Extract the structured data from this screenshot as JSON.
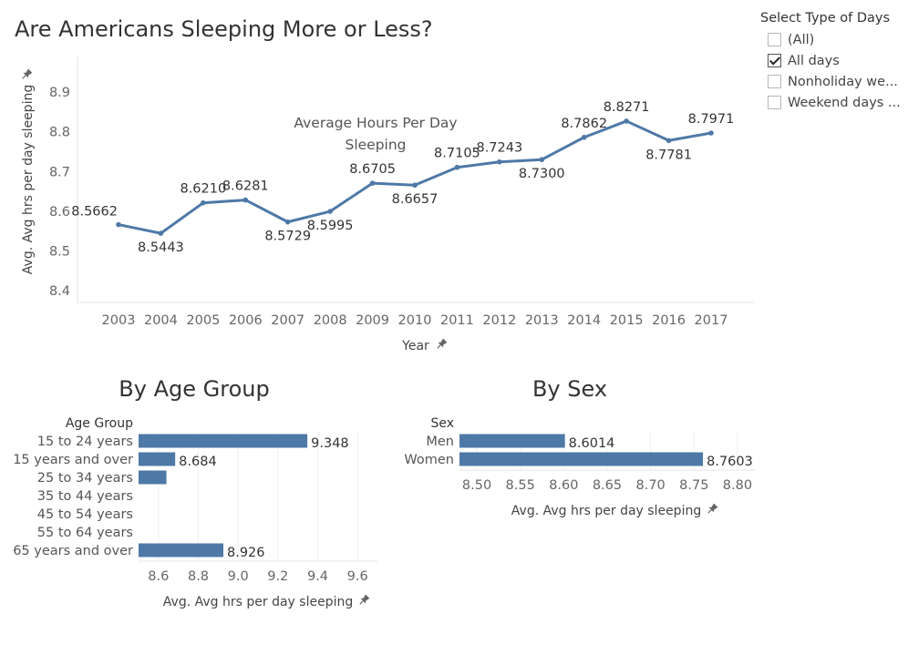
{
  "page_title": "Are Americans Sleeping More or Less?",
  "filter": {
    "title": "Select Type of Days",
    "options": [
      {
        "label": "(All)",
        "checked": false
      },
      {
        "label": "All days",
        "checked": true
      },
      {
        "label": "Nonholiday we...",
        "checked": false
      },
      {
        "label": "Weekend days ...",
        "checked": false
      }
    ]
  },
  "chart_data": [
    {
      "type": "line",
      "annotation": [
        "Average Hours Per Day",
        "Sleeping"
      ],
      "xlabel": "Year",
      "ylabel": "Avg. Avg hrs per day sleeping",
      "x": [
        "2003",
        "2004",
        "2005",
        "2006",
        "2007",
        "2008",
        "2009",
        "2010",
        "2011",
        "2012",
        "2013",
        "2014",
        "2015",
        "2016",
        "2017"
      ],
      "values": [
        8.5662,
        8.5443,
        8.621,
        8.6281,
        8.5729,
        8.5995,
        8.6705,
        8.6657,
        8.7105,
        8.7243,
        8.73,
        8.7862,
        8.8271,
        8.7781,
        8.7971
      ],
      "data_labels": [
        "8.5662",
        "8.5443",
        "8.6210",
        "8.6281",
        "8.5729",
        "8.5995",
        "8.6705",
        "8.6657",
        "8.7105",
        "8.7243",
        "8.7300",
        "8.7862",
        "8.8271",
        "8.7781",
        "8.7971"
      ],
      "yticks": [
        "8.4",
        "8.5",
        "8.6",
        "8.7",
        "8.8",
        "8.9"
      ],
      "ylim": [
        8.37,
        8.99
      ],
      "color": "#4e79a7",
      "grid": false
    },
    {
      "type": "bar",
      "title": "By Age Group",
      "category_header": "Age Group",
      "categories": [
        "15 to 24 years",
        "15 years and over",
        "25 to 34 years",
        "35 to 44 years",
        "45 to 54 years",
        "55 to 64 years",
        "65 years and over"
      ],
      "values": [
        9.348,
        8.684,
        8.64,
        null,
        null,
        null,
        8.926
      ],
      "data_labels": [
        "9.348",
        "8.684",
        "",
        "",
        "",
        "",
        "8.926"
      ],
      "xlabel": "Avg. Avg hrs per day sleeping",
      "xticks": [
        "8.6",
        "8.8",
        "9.0",
        "9.2",
        "9.4",
        "9.6"
      ],
      "xlim": [
        8.5,
        9.7
      ],
      "color": "#4e79a7"
    },
    {
      "type": "bar",
      "title": "By Sex",
      "category_header": "Sex",
      "categories": [
        "Men",
        "Women"
      ],
      "values": [
        8.6014,
        8.7603
      ],
      "data_labels": [
        "8.6014",
        "8.7603"
      ],
      "xlabel": "Avg. Avg hrs per day sleeping",
      "xticks": [
        "8.50",
        "8.55",
        "8.60",
        "8.65",
        "8.70",
        "8.75",
        "8.80"
      ],
      "xlim": [
        8.48,
        8.82
      ],
      "color": "#4e79a7"
    }
  ]
}
